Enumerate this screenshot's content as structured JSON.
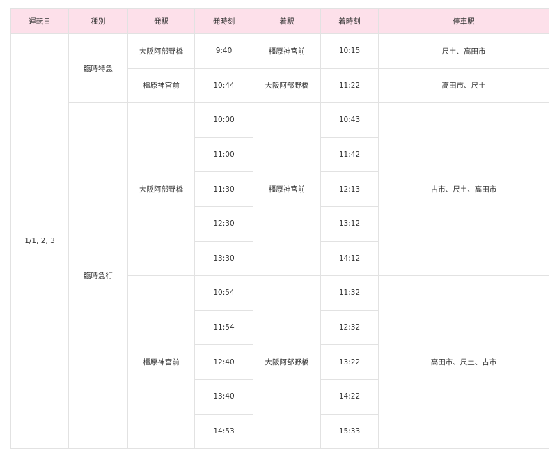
{
  "headers": [
    "運転日",
    "種別",
    "発駅",
    "発時刻",
    "着駅",
    "着時刻",
    "停車駅"
  ],
  "colors": {
    "header_bg": "#fde0ea",
    "border": "#e2e2e2",
    "text": "#333333"
  },
  "date": "1/1, 2, 3",
  "express": {
    "type": "臨時特急",
    "trips": [
      {
        "dep": "大阪阿部野橋",
        "dep_time": "9:40",
        "arr": "橿原神宮前",
        "arr_time": "10:15",
        "stops": "尺土、高田市"
      },
      {
        "dep": "橿原神宮前",
        "dep_time": "10:44",
        "arr": "大阪阿部野橋",
        "arr_time": "11:22",
        "stops": "高田市、尺土"
      }
    ]
  },
  "rapid": {
    "type": "臨時急行",
    "groups": [
      {
        "dep": "大阪阿部野橋",
        "arr": "橿原神宮前",
        "stops": "古市、尺土、高田市",
        "times": [
          {
            "dep_time": "10:00",
            "arr_time": "10:43"
          },
          {
            "dep_time": "11:00",
            "arr_time": "11:42"
          },
          {
            "dep_time": "11:30",
            "arr_time": "12:13"
          },
          {
            "dep_time": "12:30",
            "arr_time": "13:12"
          },
          {
            "dep_time": "13:30",
            "arr_time": "14:12"
          }
        ]
      },
      {
        "dep": "橿原神宮前",
        "arr": "大阪阿部野橋",
        "stops": "高田市、尺土、古市",
        "times": [
          {
            "dep_time": "10:54",
            "arr_time": "11:32"
          },
          {
            "dep_time": "11:54",
            "arr_time": "12:32"
          },
          {
            "dep_time": "12:40",
            "arr_time": "13:22"
          },
          {
            "dep_time": "13:40",
            "arr_time": "14:22"
          },
          {
            "dep_time": "14:53",
            "arr_time": "15:33"
          }
        ]
      }
    ]
  }
}
